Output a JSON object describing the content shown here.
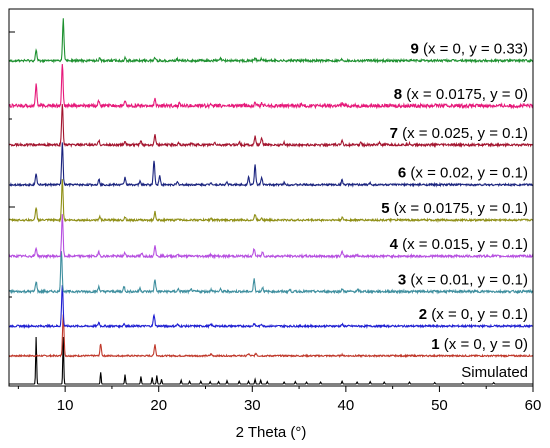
{
  "chart_data": {
    "type": "line",
    "title": "",
    "xlabel": "2 Theta (°)",
    "ylabel": "",
    "xlim": [
      4,
      60
    ],
    "x_ticks": [
      10,
      20,
      30,
      40,
      50,
      60
    ],
    "grid": false,
    "legend": "inline labels to the right of each trace",
    "series": [
      {
        "label": "Simulated",
        "color": "#000000",
        "baseline": 0.0,
        "noise": 0.0,
        "peaks": [
          [
            6.9,
            1.0
          ],
          [
            9.8,
            1.0
          ],
          [
            13.8,
            0.25
          ],
          [
            16.4,
            0.2
          ],
          [
            18.1,
            0.16
          ],
          [
            19.3,
            0.14
          ],
          [
            19.8,
            0.18
          ],
          [
            20.3,
            0.1
          ],
          [
            22.4,
            0.08
          ],
          [
            23.3,
            0.06
          ],
          [
            24.5,
            0.06
          ],
          [
            25.5,
            0.05
          ],
          [
            26.4,
            0.05
          ],
          [
            27.3,
            0.07
          ],
          [
            28.6,
            0.06
          ],
          [
            29.6,
            0.06
          ],
          [
            30.3,
            0.1
          ],
          [
            30.9,
            0.08
          ],
          [
            31.6,
            0.05
          ],
          [
            33.4,
            0.04
          ],
          [
            34.6,
            0.05
          ],
          [
            35.8,
            0.04
          ],
          [
            37.3,
            0.04
          ],
          [
            39.6,
            0.06
          ],
          [
            41.2,
            0.04
          ],
          [
            42.6,
            0.05
          ],
          [
            44.1,
            0.04
          ],
          [
            46.8,
            0.04
          ],
          [
            49.5,
            0.03
          ],
          [
            52.5,
            0.03
          ],
          [
            55.8,
            0.03
          ]
        ]
      },
      {
        "num": "1",
        "text": " (x = 0, y = 0)",
        "color": "#c0392b",
        "baseline": 0.075,
        "noise": 0.004,
        "peaks": [
          [
            9.8,
            1.0
          ],
          [
            13.8,
            0.28
          ],
          [
            19.6,
            0.28
          ],
          [
            25.6,
            0.04
          ],
          [
            29.6,
            0.05
          ],
          [
            30.4,
            0.06
          ],
          [
            39.6,
            0.03
          ]
        ]
      },
      {
        "num": "2",
        "text": " (x = 0, y = 0.1)",
        "color": "#1f1fd2",
        "baseline": 0.154,
        "noise": 0.005,
        "peaks": [
          [
            9.7,
            1.0
          ],
          [
            13.6,
            0.09
          ],
          [
            16.3,
            0.06
          ],
          [
            19.5,
            0.28
          ],
          [
            22.0,
            0.04
          ],
          [
            25.6,
            0.04
          ],
          [
            30.2,
            0.06
          ],
          [
            31.0,
            0.05
          ],
          [
            39.6,
            0.04
          ]
        ]
      },
      {
        "num": "3",
        "text": " (x = 0.01, y = 0.1)",
        "color": "#3f8f9f",
        "baseline": 0.246,
        "noise": 0.006,
        "peaks": [
          [
            6.9,
            0.25
          ],
          [
            9.6,
            1.0
          ],
          [
            13.6,
            0.12
          ],
          [
            16.3,
            0.12
          ],
          [
            18.0,
            0.08
          ],
          [
            19.6,
            0.3
          ],
          [
            22.1,
            0.06
          ],
          [
            23.5,
            0.05
          ],
          [
            25.6,
            0.05
          ],
          [
            26.6,
            0.05
          ],
          [
            30.2,
            0.3
          ],
          [
            31.1,
            0.1
          ],
          [
            34.0,
            0.04
          ],
          [
            39.6,
            0.06
          ],
          [
            41.3,
            0.04
          ]
        ]
      },
      {
        "num": "4",
        "text": " (x = 0.015, y = 0.1)",
        "color": "#b64fe0",
        "baseline": 0.34,
        "noise": 0.006,
        "peaks": [
          [
            6.9,
            0.2
          ],
          [
            9.7,
            1.0
          ],
          [
            13.6,
            0.1
          ],
          [
            16.4,
            0.08
          ],
          [
            18.2,
            0.06
          ],
          [
            19.6,
            0.28
          ],
          [
            22.0,
            0.05
          ],
          [
            25.6,
            0.04
          ],
          [
            30.2,
            0.18
          ],
          [
            31.1,
            0.1
          ],
          [
            39.6,
            0.1
          ],
          [
            41.2,
            0.04
          ]
        ]
      },
      {
        "num": "5",
        "text": " (x = 0.0175, y = 0.1)",
        "color": "#8f8f16",
        "baseline": 0.436,
        "noise": 0.005,
        "peaks": [
          [
            6.9,
            0.3
          ],
          [
            9.7,
            1.0
          ],
          [
            13.7,
            0.08
          ],
          [
            16.4,
            0.08
          ],
          [
            19.6,
            0.2
          ],
          [
            22.1,
            0.04
          ],
          [
            25.6,
            0.04
          ],
          [
            30.3,
            0.14
          ],
          [
            31.0,
            0.06
          ],
          [
            39.6,
            0.06
          ]
        ]
      },
      {
        "num": "6",
        "text": " (x = 0.02, y = 0.1)",
        "color": "#1a237e",
        "baseline": 0.53,
        "noise": 0.005,
        "peaks": [
          [
            6.9,
            0.28
          ],
          [
            9.7,
            1.0
          ],
          [
            13.6,
            0.14
          ],
          [
            16.4,
            0.18
          ],
          [
            18.0,
            0.08
          ],
          [
            19.5,
            0.6
          ],
          [
            20.1,
            0.22
          ],
          [
            22.0,
            0.06
          ],
          [
            25.6,
            0.06
          ],
          [
            27.3,
            0.06
          ],
          [
            29.6,
            0.2
          ],
          [
            30.3,
            0.48
          ],
          [
            31.0,
            0.16
          ],
          [
            33.4,
            0.05
          ],
          [
            39.6,
            0.12
          ],
          [
            42.6,
            0.04
          ]
        ]
      },
      {
        "num": "7",
        "text": " (x = 0.025, y = 0.1)",
        "color": "#a3142e",
        "baseline": 0.636,
        "noise": 0.006,
        "peaks": [
          [
            9.7,
            1.0
          ],
          [
            13.6,
            0.1
          ],
          [
            16.4,
            0.1
          ],
          [
            18.1,
            0.08
          ],
          [
            19.6,
            0.28
          ],
          [
            22.1,
            0.06
          ],
          [
            23.5,
            0.05
          ],
          [
            26.0,
            0.05
          ],
          [
            28.6,
            0.08
          ],
          [
            30.3,
            0.2
          ],
          [
            31.0,
            0.18
          ],
          [
            33.4,
            0.05
          ],
          [
            39.6,
            0.12
          ],
          [
            41.6,
            0.05
          ],
          [
            43.6,
            0.06
          ],
          [
            46.8,
            0.04
          ]
        ]
      },
      {
        "num": "8",
        "text": " (x = 0.0175, y = 0)",
        "color": "#e6197a",
        "baseline": 0.74,
        "noise": 0.009,
        "peaks": [
          [
            6.9,
            0.55
          ],
          [
            9.7,
            1.0
          ],
          [
            13.6,
            0.12
          ],
          [
            16.4,
            0.1
          ],
          [
            19.6,
            0.15
          ],
          [
            22.2,
            0.06
          ],
          [
            25.6,
            0.06
          ],
          [
            30.3,
            0.12
          ],
          [
            31.0,
            0.06
          ],
          [
            35.2,
            0.04
          ],
          [
            39.6,
            0.06
          ],
          [
            49.6,
            0.05
          ]
        ]
      },
      {
        "num": "9",
        "text": " (x = 0, y = 0.33)",
        "color": "#1e9130",
        "baseline": 0.86,
        "noise": 0.006,
        "peaks": [
          [
            6.9,
            0.25
          ],
          [
            9.8,
            1.0
          ],
          [
            13.7,
            0.08
          ],
          [
            16.4,
            0.06
          ],
          [
            19.6,
            0.08
          ],
          [
            22.0,
            0.04
          ],
          [
            26.6,
            0.05
          ],
          [
            30.3,
            0.06
          ],
          [
            31.0,
            0.05
          ],
          [
            39.6,
            0.04
          ]
        ]
      }
    ]
  }
}
